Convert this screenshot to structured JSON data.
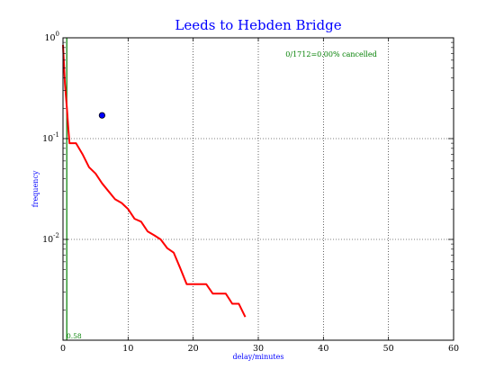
{
  "chart_data": {
    "type": "line",
    "title": "Leeds to Hebden Bridge",
    "xlabel": "delay/minutes",
    "ylabel": "frequency",
    "xlim": [
      0,
      60
    ],
    "ylim": [
      0.001,
      1
    ],
    "yscale": "log",
    "grid": true,
    "x_ticks": [
      "0",
      "10",
      "20",
      "30",
      "40",
      "50",
      "60"
    ],
    "y_ticks": [
      {
        "base": "10",
        "exp": "0",
        "value": 1
      },
      {
        "base": "10",
        "exp": "-1",
        "value": 0.1
      },
      {
        "base": "10",
        "exp": "-2",
        "value": 0.01
      }
    ],
    "annotation": "0/1712=0.00% cancelled",
    "vline": {
      "x": 0.58,
      "label": "0.58",
      "color": "#007f00"
    },
    "marker_point": {
      "x": 6,
      "y": 0.17,
      "color": "#0000ff"
    },
    "series": [
      {
        "color": "#ff0000",
        "points": [
          [
            0,
            0.85
          ],
          [
            0.3,
            0.35
          ],
          [
            0.6,
            0.2
          ],
          [
            0.8,
            0.13
          ],
          [
            1,
            0.09
          ],
          [
            2,
            0.09
          ],
          [
            3,
            0.07
          ],
          [
            4,
            0.052
          ],
          [
            5,
            0.045
          ],
          [
            6,
            0.036
          ],
          [
            7,
            0.03
          ],
          [
            8,
            0.025
          ],
          [
            9,
            0.023
          ],
          [
            10,
            0.02
          ],
          [
            11,
            0.016
          ],
          [
            12,
            0.015
          ],
          [
            13,
            0.012
          ],
          [
            14,
            0.011
          ],
          [
            15,
            0.01
          ],
          [
            16,
            0.0082
          ],
          [
            17,
            0.0074
          ],
          [
            18,
            0.0052
          ],
          [
            19,
            0.0036
          ],
          [
            20,
            0.0036
          ],
          [
            21,
            0.0036
          ],
          [
            22,
            0.0036
          ],
          [
            23,
            0.0029
          ],
          [
            24,
            0.0029
          ],
          [
            25,
            0.0029
          ],
          [
            26,
            0.0023
          ],
          [
            27,
            0.0023
          ],
          [
            28,
            0.0017
          ]
        ]
      }
    ]
  }
}
